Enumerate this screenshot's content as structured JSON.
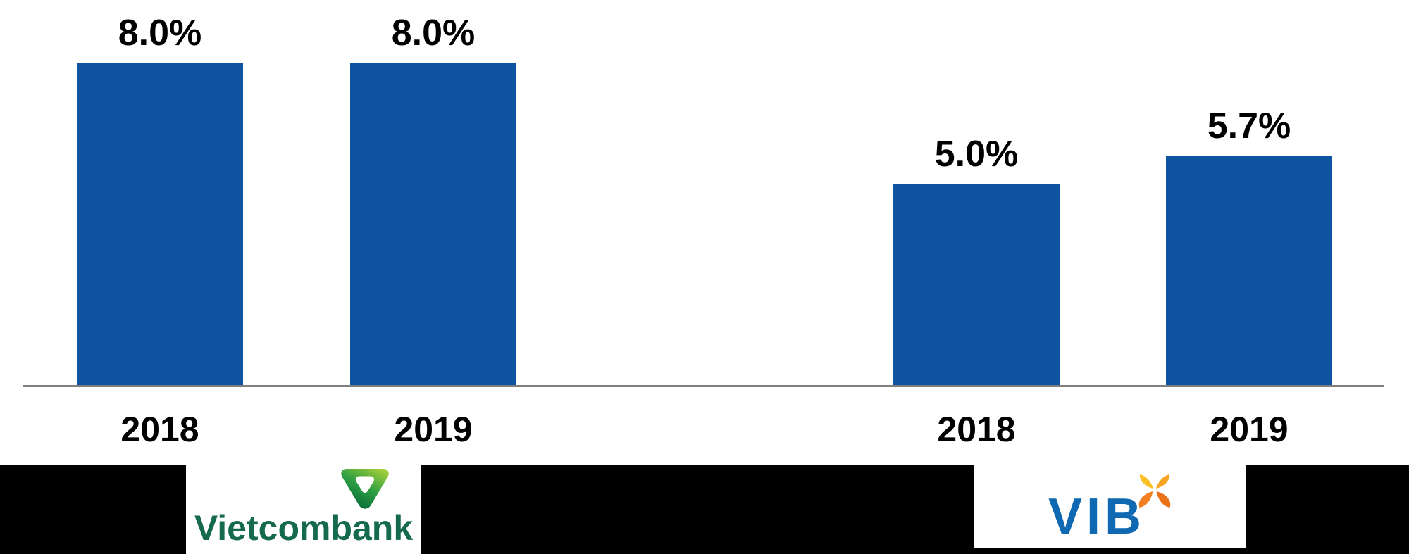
{
  "chart_data": {
    "type": "bar",
    "title": "",
    "xlabel": "",
    "ylabel": "",
    "unit": "%",
    "ylim": [
      0,
      8.8
    ],
    "grid": false,
    "legend_position": "none",
    "bar_color": "#0E539F",
    "axis_color": "#7F7F7F",
    "label_color": "#000000",
    "categories": [
      "2018",
      "2019",
      "2018",
      "2019"
    ],
    "values": [
      8.0,
      8.0,
      5.0,
      5.7
    ],
    "data_labels": [
      "8.0%",
      "8.0%",
      "5.0%",
      "5.7%"
    ],
    "groups": [
      {
        "name": "Vietcombank",
        "bars": [
          {
            "category": "2018",
            "value": 8.0,
            "label": "8.0%"
          },
          {
            "category": "2019",
            "value": 8.0,
            "label": "8.0%"
          }
        ]
      },
      {
        "name": "VIB",
        "bars": [
          {
            "category": "2018",
            "value": 5.0,
            "label": "5.0%"
          },
          {
            "category": "2019",
            "value": 5.7,
            "label": "5.7%"
          }
        ]
      }
    ]
  },
  "footer": {
    "band_color": "#000000",
    "logos": [
      {
        "name": "Vietcombank",
        "wordmark": "Vietcombank",
        "text_color": "#146A4A",
        "icon": "vietcombank-shield-icon",
        "icon_colors": [
          "#A6CE39",
          "#2FA043",
          "#046A38"
        ]
      },
      {
        "name": "VIB",
        "wordmark": "VIB",
        "text_color": "#0E69B2",
        "icon": "vib-butterfly-icon",
        "icon_colors": [
          "#FBC125",
          "#F9A422",
          "#F08021",
          "#EC7218"
        ]
      }
    ]
  }
}
